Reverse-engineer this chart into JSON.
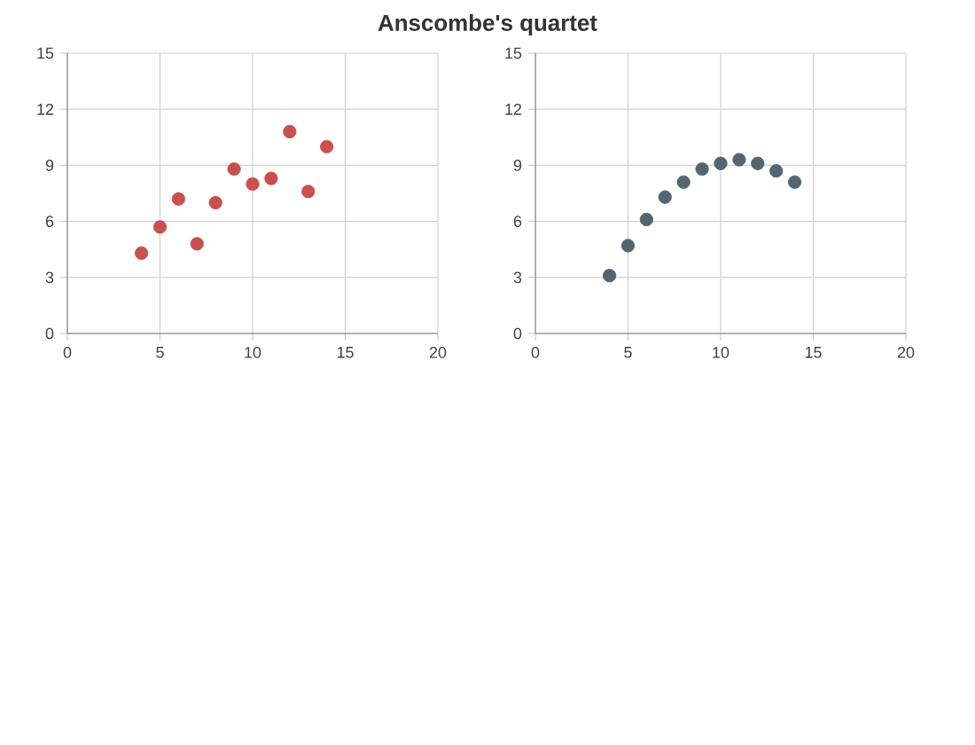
{
  "chart_data": [
    {
      "type": "scatter",
      "title": "Anscombe's quartet",
      "x": [
        10,
        8,
        13,
        9,
        11,
        14,
        6,
        4,
        12,
        7,
        5
      ],
      "series": [
        {
          "color": "#c9504d",
          "values": [
            8.0,
            7.0,
            7.6,
            8.8,
            8.3,
            10.0,
            7.2,
            4.3,
            10.8,
            4.8,
            5.7
          ]
        }
      ],
      "xlim": [
        0,
        20
      ],
      "xticks": [
        0,
        5,
        10,
        15,
        20
      ],
      "ylim": [
        0,
        15
      ],
      "yticks": [
        0,
        3,
        6,
        9,
        12,
        15
      ],
      "grid": true,
      "marker": "circle"
    },
    {
      "type": "scatter",
      "x": [
        10,
        8,
        13,
        9,
        11,
        14,
        6,
        4,
        12,
        7,
        5
      ],
      "series": [
        {
          "color": "#546570",
          "values": [
            9.1,
            8.1,
            8.7,
            8.8,
            9.3,
            8.1,
            6.1,
            3.1,
            9.1,
            7.3,
            4.7
          ]
        }
      ],
      "xlim": [
        0,
        20
      ],
      "xticks": [
        0,
        5,
        10,
        15,
        20
      ],
      "ylim": [
        0,
        15
      ],
      "yticks": [
        0,
        3,
        6,
        9,
        12,
        15
      ],
      "grid": true,
      "marker": "circle"
    }
  ]
}
